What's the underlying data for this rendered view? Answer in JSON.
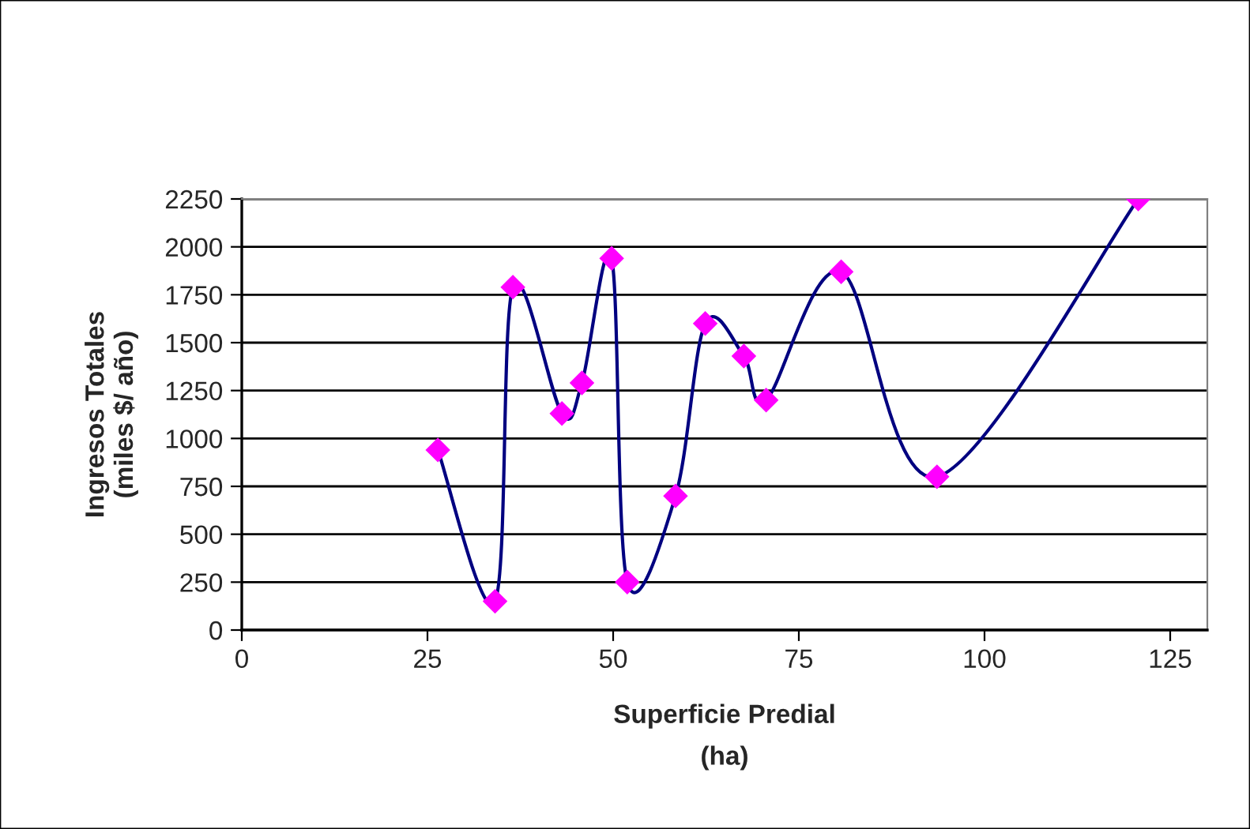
{
  "chart_data": {
    "type": "line",
    "xlabel": "Superficie Predial\n(ha)",
    "ylabel": "Ingresos Totales\n(miles $/ año)",
    "x": [
      26.4,
      34.1,
      36.5,
      43.1,
      45.8,
      49.8,
      51.9,
      58.4,
      62.4,
      67.6,
      70.6,
      80.7,
      93.6,
      120.7
    ],
    "series": [
      {
        "color": "#000080",
        "values": [
          940,
          150,
          1790,
          1130,
          1290,
          1940,
          250,
          700,
          1600,
          1430,
          1200,
          1870,
          800,
          2250
        ]
      }
    ],
    "marker": "diamond",
    "line_style": "solid",
    "xlim": [
      0,
      130
    ],
    "xticks": [
      0,
      25,
      50,
      75,
      100,
      125
    ],
    "ylim": [
      0,
      2250
    ],
    "yticks": [
      0,
      250,
      500,
      750,
      1000,
      1250,
      1500,
      1750,
      2000,
      2250
    ],
    "grid": "y",
    "legend": false
  }
}
